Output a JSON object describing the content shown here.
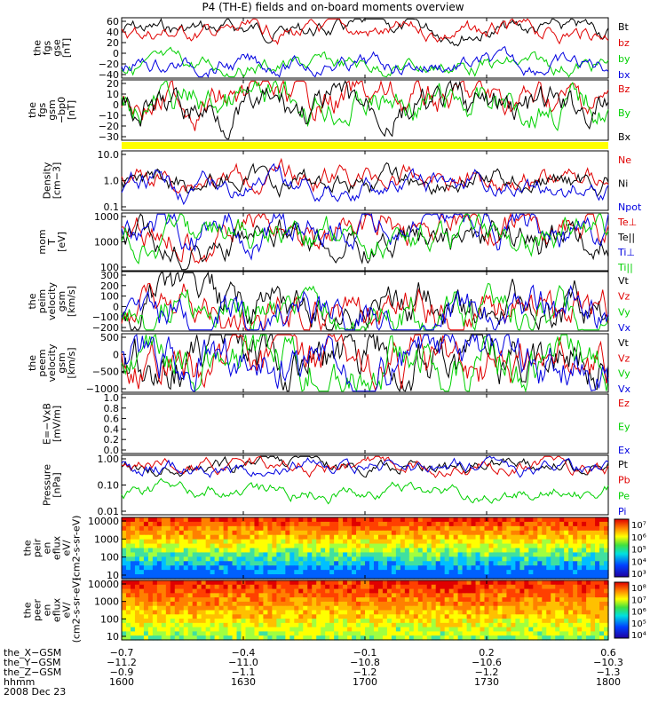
{
  "title": "P4 (TH-E) fields and on-board moments overview",
  "colors": {
    "black": "#000000",
    "red": "#e00000",
    "green": "#00d000",
    "blue": "#0000e0",
    "yellow": "#ffff00"
  },
  "chart_data": [
    {
      "id": "fgs",
      "type": "line",
      "ylabel": [
        "the",
        "fgs",
        "gse",
        "[nT]"
      ],
      "yticks": [
        "60",
        "40",
        "20",
        "0",
        "−20",
        "−40"
      ],
      "series": [
        {
          "name": "Bt",
          "color": "black"
        },
        {
          "name": "bz",
          "color": "red"
        },
        {
          "name": "by",
          "color": "green"
        },
        {
          "name": "bx",
          "color": "blue"
        }
      ]
    },
    {
      "id": "fgs_gsm",
      "type": "line",
      "ylabel": [
        "the",
        "fgs",
        "gsm",
        "−bp0",
        "[nT]"
      ],
      "yticks": [
        "20",
        "10",
        "0",
        "−10",
        "−20",
        "−30"
      ],
      "series": [
        {
          "name": "Bz",
          "color": "red"
        },
        {
          "name": "By",
          "color": "green"
        },
        {
          "name": "Bx",
          "color": "black"
        }
      ]
    },
    {
      "id": "flag",
      "type": "bar",
      "color": "yellow"
    },
    {
      "id": "density",
      "type": "line",
      "ylabel": [
        "Density",
        "[cm−3]"
      ],
      "yticks": [
        "10.0",
        "1.0",
        "0.1"
      ],
      "scale": "log",
      "series": [
        {
          "name": "Ne",
          "color": "red"
        },
        {
          "name": "Ni",
          "color": "black"
        },
        {
          "name": "Npot",
          "color": "blue"
        }
      ]
    },
    {
      "id": "temp",
      "type": "line",
      "ylabel": [
        "mom",
        "T",
        "[eV]"
      ],
      "yticks": [
        "1000",
        "1000",
        "100"
      ],
      "scale": "log",
      "series": [
        {
          "name": "Te⊥",
          "color": "red"
        },
        {
          "name": "Te||",
          "color": "black"
        },
        {
          "name": "Ti⊥",
          "color": "blue"
        },
        {
          "name": "Ti||",
          "color": "green"
        }
      ]
    },
    {
      "id": "peim_v",
      "type": "line",
      "ylabel": [
        "the",
        "peim",
        "velocity",
        "gsm",
        "[km/s]"
      ],
      "yticks": [
        "300",
        "200",
        "100",
        "0",
        "−100",
        "−200"
      ],
      "series": [
        {
          "name": "Vt",
          "color": "black"
        },
        {
          "name": "Vz",
          "color": "red"
        },
        {
          "name": "Vy",
          "color": "green"
        },
        {
          "name": "Vx",
          "color": "blue"
        }
      ]
    },
    {
      "id": "peem_v",
      "type": "line",
      "ylabel": [
        "the",
        "peem",
        "velocity",
        "gsm",
        "[km/s]"
      ],
      "yticks": [
        "500",
        "0",
        "−500",
        "−1000"
      ],
      "series": [
        {
          "name": "Vt",
          "color": "black"
        },
        {
          "name": "Vz",
          "color": "red"
        },
        {
          "name": "Vy",
          "color": "green"
        },
        {
          "name": "Vx",
          "color": "blue"
        }
      ]
    },
    {
      "id": "exb",
      "type": "line",
      "ylabel": [
        "E=−VxB",
        "[mV/m]"
      ],
      "yticks": [
        "1.0",
        "0.8",
        "0.6",
        "0.4",
        "0.2",
        "0.0"
      ],
      "series": [
        {
          "name": "Ez",
          "color": "red"
        },
        {
          "name": "Ey",
          "color": "green"
        },
        {
          "name": "Ex",
          "color": "blue"
        }
      ]
    },
    {
      "id": "pressure",
      "type": "line",
      "ylabel": [
        "Pressure",
        "[nPa]"
      ],
      "yticks": [
        "1.00",
        "0.10",
        "0.01"
      ],
      "scale": "log",
      "series": [
        {
          "name": "Pt",
          "color": "black"
        },
        {
          "name": "Pb",
          "color": "red"
        },
        {
          "name": "Pe",
          "color": "green"
        },
        {
          "name": "Pi",
          "color": "blue"
        }
      ]
    },
    {
      "id": "peir",
      "type": "heatmap",
      "ylabel": [
        "the",
        "peir",
        "en",
        "eflux",
        "eV/",
        "(cm2-s-sr-eV)"
      ],
      "yticks": [
        "10000",
        "1000",
        "100",
        "10"
      ],
      "colorbar": [
        "10⁷",
        "10⁶",
        "10⁵",
        "10⁴",
        "10³"
      ]
    },
    {
      "id": "peer",
      "type": "heatmap",
      "ylabel": [
        "the",
        "peer",
        "en",
        "eflux",
        "eV/",
        "(cm2-s-sr-eV)"
      ],
      "yticks": [
        "10000",
        "1000",
        "100",
        "10"
      ],
      "colorbar": [
        "10⁸",
        "10⁷",
        "10⁶",
        "10⁵",
        "10⁴"
      ]
    }
  ],
  "footer": {
    "rows": [
      {
        "label": "the_X−GSM",
        "values": [
          "−0.7",
          "−0.4",
          "−0.1",
          "0.2",
          "0.6"
        ]
      },
      {
        "label": "the_Y−GSM",
        "values": [
          "−11.2",
          "−11.0",
          "−10.8",
          "−10.6",
          "−10.3"
        ]
      },
      {
        "label": "the_Z−GSM",
        "values": [
          "−0.9",
          "−1.1",
          "−1.2",
          "−1.2",
          "−1.3"
        ]
      },
      {
        "label": "hhmm",
        "values": [
          "1600",
          "1630",
          "1700",
          "1730",
          "1800"
        ]
      }
    ],
    "date": "2008 Dec 23"
  }
}
